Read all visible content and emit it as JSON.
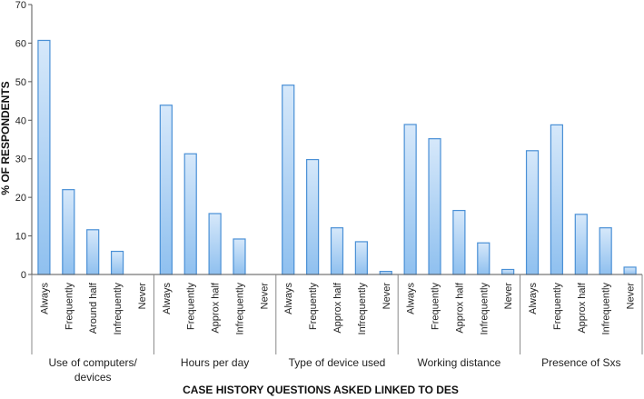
{
  "chart_data": {
    "type": "bar",
    "xlabel": "CASE HISTORY QUESTIONS ASKED LINKED TO DES",
    "ylabel": "% OF RESPONDENTS",
    "ylim": [
      0,
      70
    ],
    "yticks": [
      0,
      10,
      20,
      30,
      40,
      50,
      60,
      70
    ],
    "grid": false,
    "bar_colors": {
      "fill_top": "#d6e8fa",
      "fill_bottom": "#8fc0ef",
      "stroke": "#4a90d6"
    },
    "groups": [
      {
        "label": "Use of computers/ devices",
        "label_lines": [
          "Use of computers/",
          "devices"
        ],
        "categories": [
          "Always",
          "Frequently",
          "Around half",
          "Infrequently",
          "Never"
        ],
        "values": [
          60.7,
          22.0,
          11.6,
          6.0,
          0
        ]
      },
      {
        "label": "Hours per day",
        "label_lines": [
          "Hours per day"
        ],
        "categories": [
          "Always",
          "Frequently",
          "Approx half",
          "Infrequently",
          "Never"
        ],
        "values": [
          43.9,
          31.3,
          15.8,
          9.2,
          0
        ]
      },
      {
        "label": "Type of device used",
        "label_lines": [
          "Type of device used"
        ],
        "categories": [
          "Always",
          "Frequently",
          "Approx half",
          "Infrequently",
          "Never"
        ],
        "values": [
          49.1,
          29.8,
          12.1,
          8.5,
          0.8
        ]
      },
      {
        "label": "Working distance",
        "label_lines": [
          "Working distance"
        ],
        "categories": [
          "Always",
          "Frequently",
          "Approx half",
          "Infrequently",
          "Never"
        ],
        "values": [
          38.9,
          35.2,
          16.6,
          8.2,
          1.3
        ]
      },
      {
        "label": "Presence of Sxs",
        "label_lines": [
          "Presence of Sxs"
        ],
        "categories": [
          "Always",
          "Frequently",
          "Approx half",
          "Infrequently",
          "Never"
        ],
        "values": [
          32.1,
          38.8,
          15.6,
          12.1,
          1.9
        ]
      }
    ]
  }
}
